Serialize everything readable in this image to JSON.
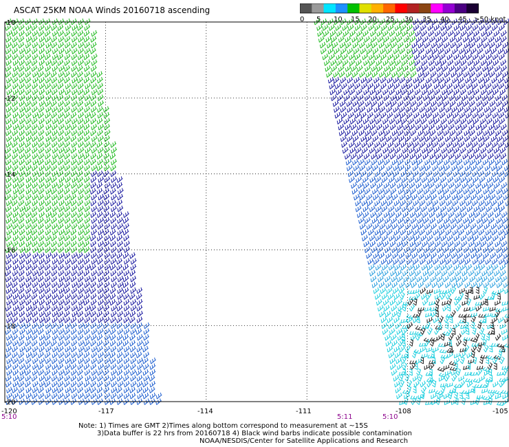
{
  "title": "ASCAT 25KM NOAA Winds 20160718 ascending",
  "colorbar": {
    "ticks": [
      "0",
      "5",
      "10",
      "15",
      "20",
      "25",
      "30",
      "35",
      "40",
      "45",
      ">50 knots"
    ],
    "colors": [
      "#555555",
      "#9a9a9a",
      "#00e5ff",
      "#1e90ff",
      "#00c000",
      "#e0e000",
      "#ffb000",
      "#ff6600",
      "#ff0000",
      "#b22222",
      "#8b4513",
      "#ff00ff",
      "#9400d3",
      "#4b0082",
      "#1a0033"
    ]
  },
  "map": {
    "lat_labels": [
      "-10",
      "-12",
      "-14",
      "-16",
      "-18",
      "-20"
    ],
    "lon_labels": [
      "-120",
      "-117",
      "-114",
      "-111",
      "-108",
      "-105"
    ],
    "time_labels": [
      "5:10",
      "5:11",
      "5:10"
    ]
  },
  "notes": {
    "line1": "Note: 1) Times are GMT 2)Times along bottom correspond to measurement at ~15S",
    "line2": "3)Data buffer is 22 hrs from 20160718 4) Black wind barbs indicate possible contamination",
    "line3": "NOAA/NESDIS/Center for Satellite Applications and Research"
  }
}
